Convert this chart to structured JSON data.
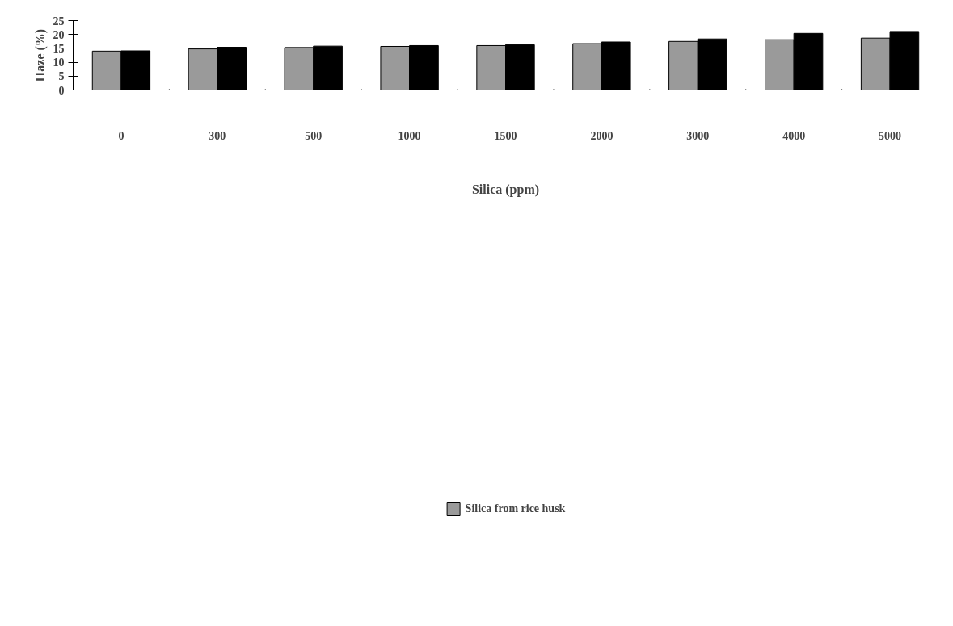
{
  "chart_data": {
    "type": "bar",
    "xlabel": "Silica (ppm)",
    "ylabel": "Haze (%)",
    "categories": [
      "0",
      "300",
      "500",
      "1000",
      "1500",
      "2000",
      "3000",
      "4000",
      "5000"
    ],
    "series": [
      {
        "name": "Silica from rice husk",
        "color": "#9a9a9a",
        "values": [
          14.0,
          14.8,
          15.3,
          15.7,
          16.0,
          16.7,
          17.5,
          18.1,
          18.7
        ]
      },
      {
        "color": "#000000",
        "values": [
          14.1,
          15.4,
          15.8,
          16.0,
          16.3,
          17.3,
          18.4,
          20.4,
          21.1
        ]
      }
    ],
    "ylim": [
      0,
      25
    ],
    "yticks": [
      0,
      5,
      10,
      15,
      20,
      25
    ],
    "grid": false,
    "legend": "bottom"
  }
}
